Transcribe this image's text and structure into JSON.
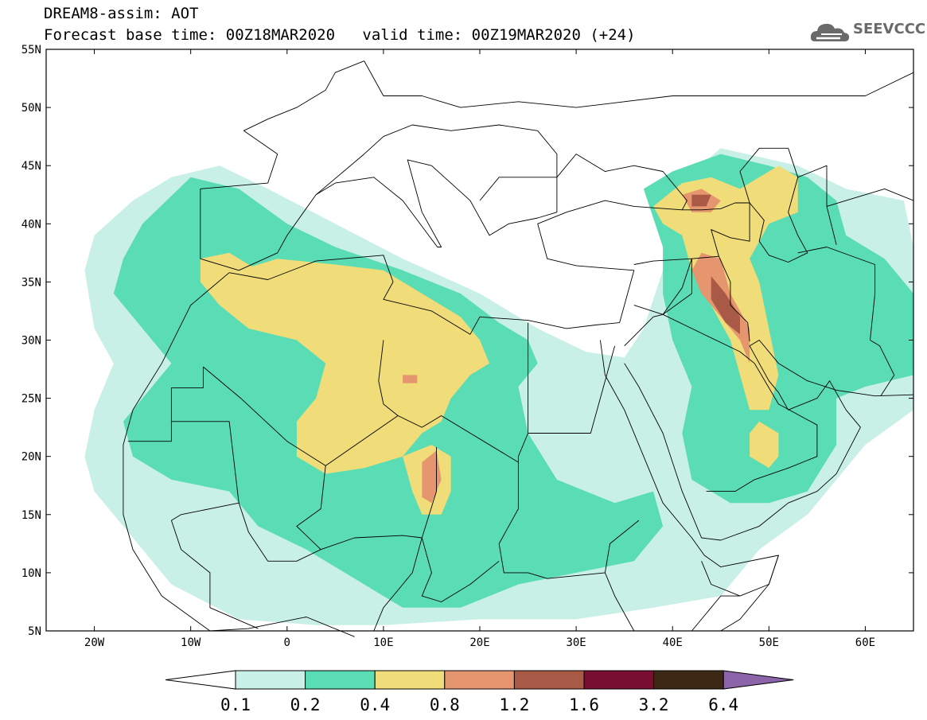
{
  "header": {
    "model_line": "DREAM8-assim: AOT",
    "base_time": "Forecast base time: 00Z18MAR2020",
    "valid_time": "valid time: 00Z19MAR2020 (+24)"
  },
  "logo": {
    "text": "SEEVCCC",
    "icon": "cloud-icon",
    "color": "#6a6a6a"
  },
  "map": {
    "lon_range": [
      -25,
      65
    ],
    "lat_range": [
      5,
      55
    ],
    "lat_ticks": [
      {
        "value": 55,
        "label": "55N"
      },
      {
        "value": 50,
        "label": "50N"
      },
      {
        "value": 45,
        "label": "45N"
      },
      {
        "value": 40,
        "label": "40N"
      },
      {
        "value": 35,
        "label": "35N"
      },
      {
        "value": 30,
        "label": "30N"
      },
      {
        "value": 25,
        "label": "25N"
      },
      {
        "value": 20,
        "label": "20N"
      },
      {
        "value": 15,
        "label": "15N"
      },
      {
        "value": 10,
        "label": "10N"
      },
      {
        "value": 5,
        "label": "5N"
      }
    ],
    "lon_ticks": [
      {
        "value": -20,
        "label": "20W"
      },
      {
        "value": -10,
        "label": "10W"
      },
      {
        "value": 0,
        "label": "0"
      },
      {
        "value": 10,
        "label": "10E"
      },
      {
        "value": 20,
        "label": "20E"
      },
      {
        "value": 30,
        "label": "30E"
      },
      {
        "value": 40,
        "label": "40E"
      },
      {
        "value": 50,
        "label": "50E"
      },
      {
        "value": 60,
        "label": "60E"
      }
    ]
  },
  "colorbar": {
    "levels": [
      "0.1",
      "0.2",
      "0.4",
      "0.8",
      "1.2",
      "1.6",
      "3.2",
      "6.4"
    ],
    "colors": {
      "under": "#ffffff",
      "c1": "#c8f0e6",
      "c2": "#5adcb4",
      "c3": "#f0dc78",
      "c4": "#e6966e",
      "c5": "#a85a46",
      "c6": "#780f32",
      "c7": "#3c2814",
      "over": "#8c64aa"
    }
  }
}
